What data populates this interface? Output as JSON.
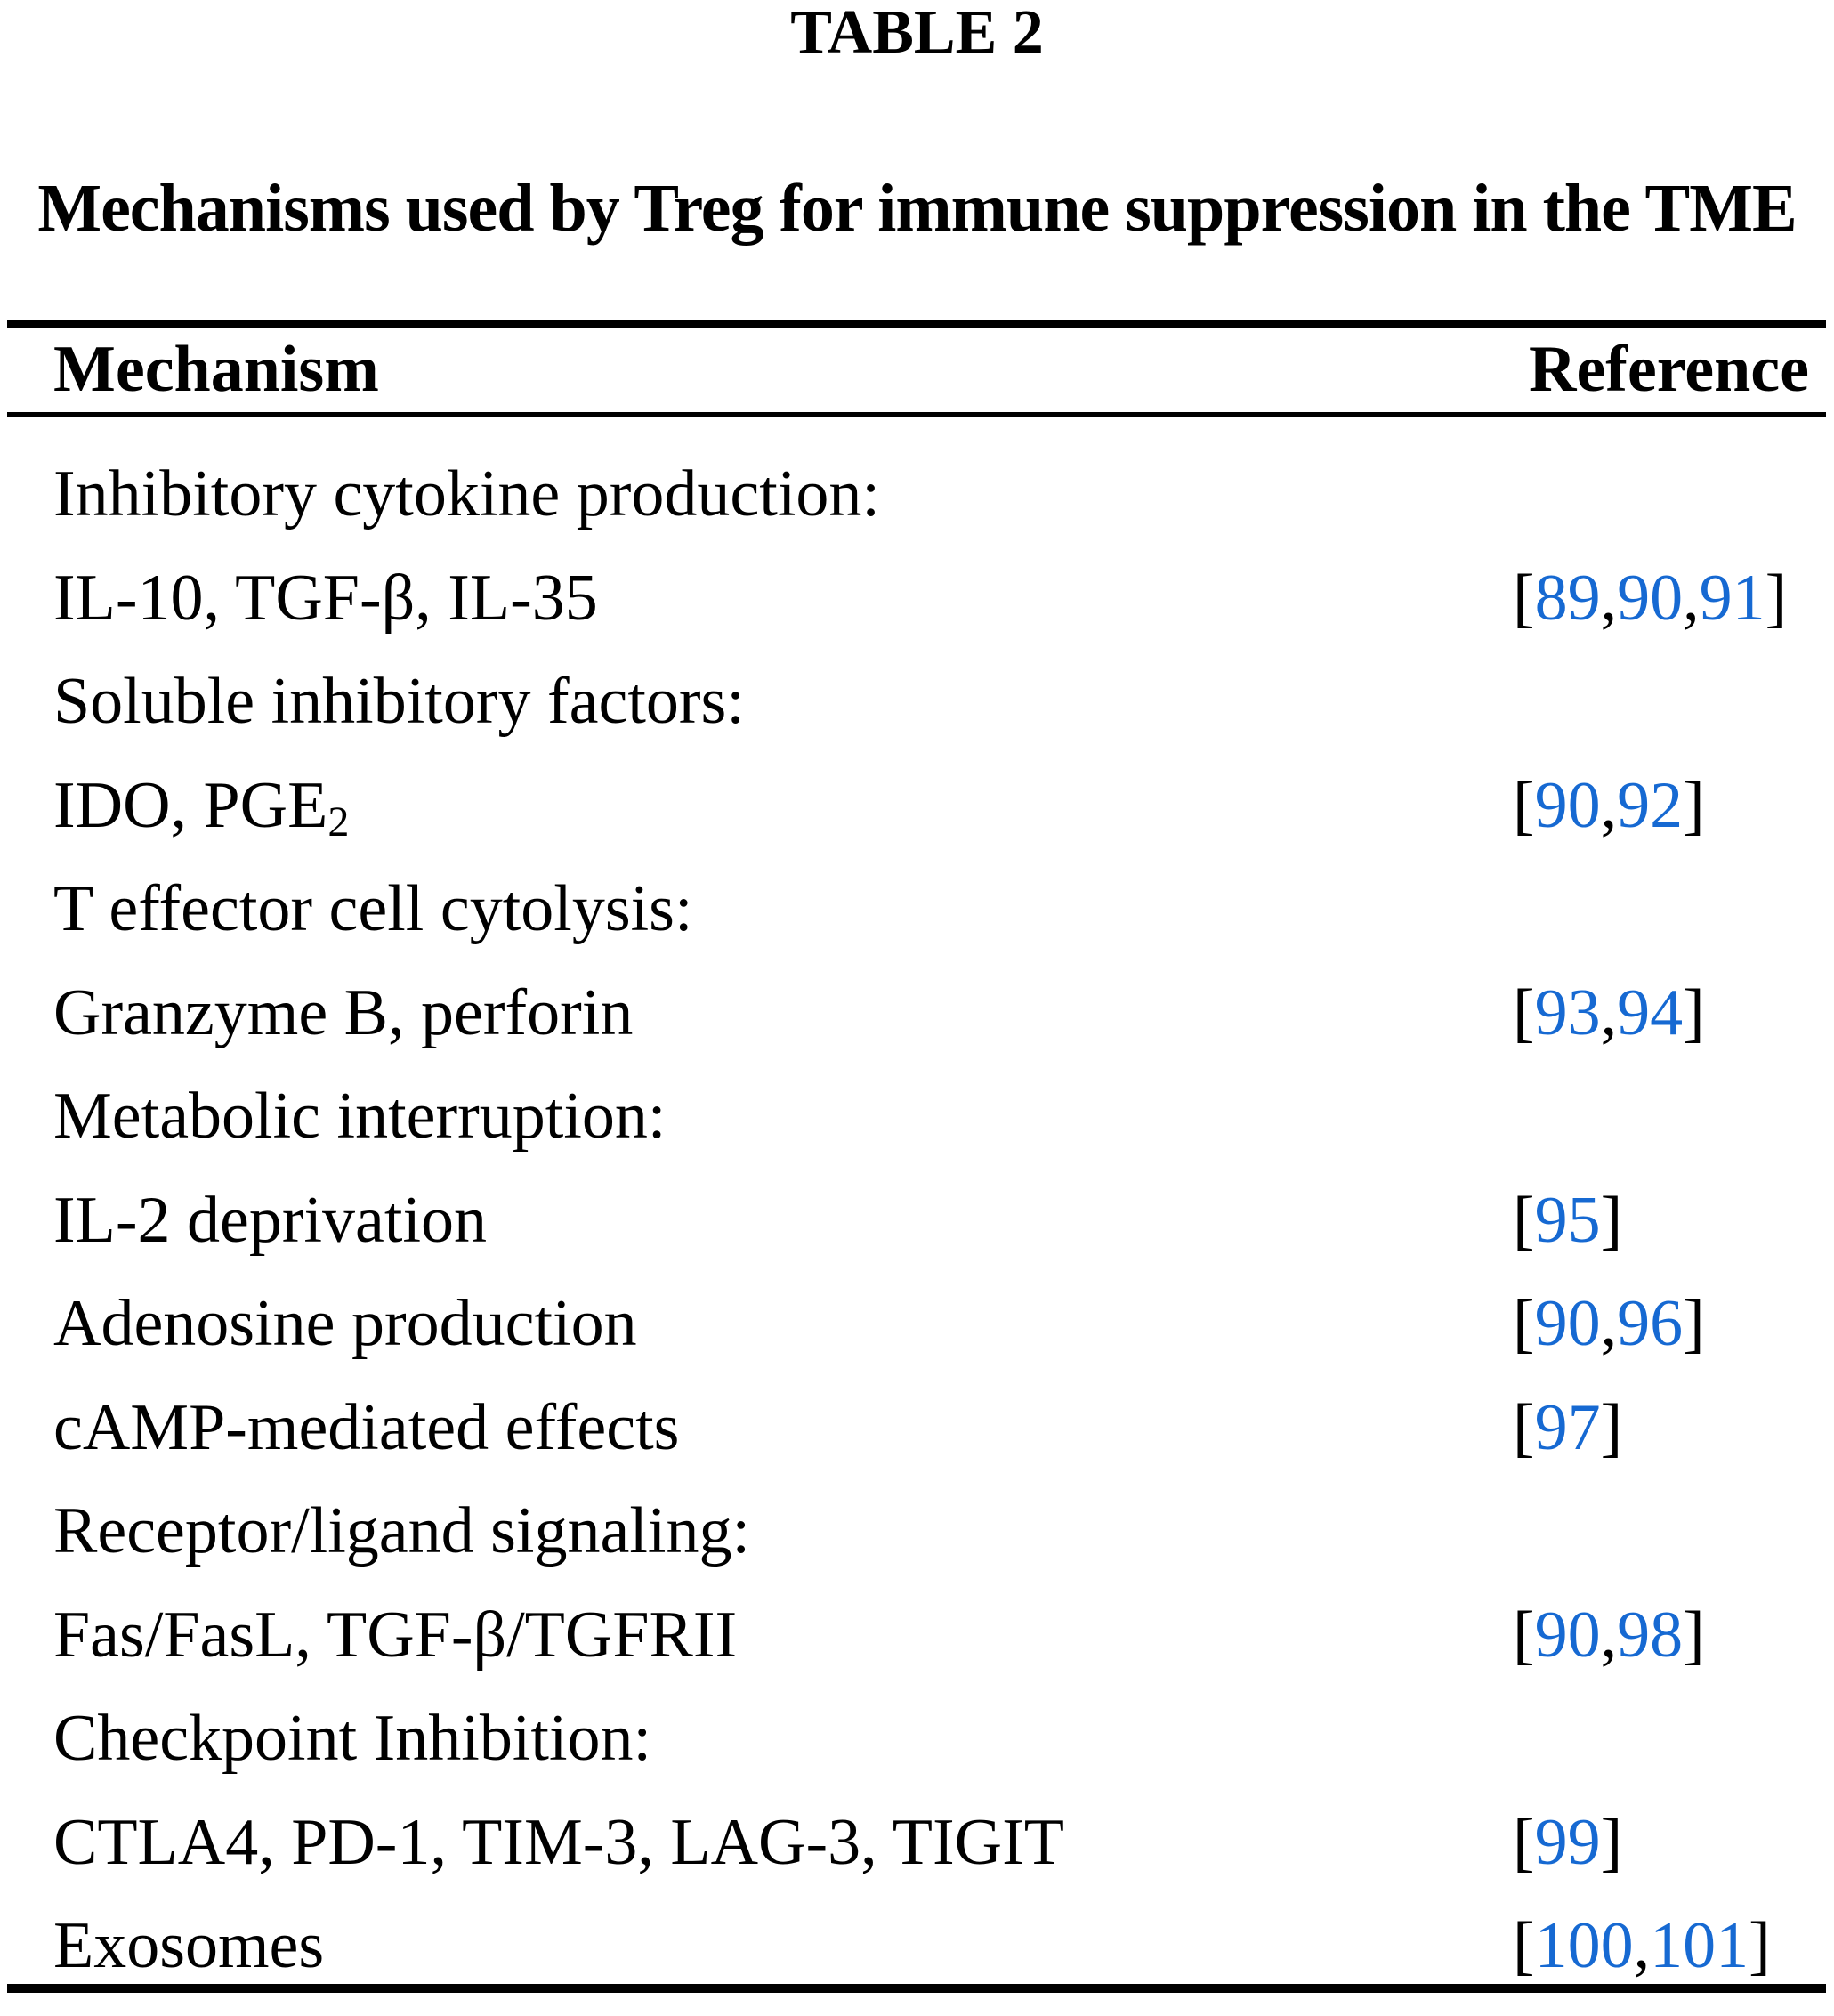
{
  "table": {
    "label": "TABLE 2",
    "title": "Mechanisms used by Treg for immune suppression in the TME",
    "columns": {
      "mechanism": "Mechanism",
      "reference": "Reference"
    },
    "rows": [
      {
        "parts": [
          {
            "text": "Inhibitory cytokine production:"
          }
        ],
        "refs": []
      },
      {
        "parts": [
          {
            "text": "IL-10, TGF-β, IL-35"
          }
        ],
        "refs": [
          "89",
          "90",
          "91"
        ]
      },
      {
        "parts": [
          {
            "text": "Soluble inhibitory factors:"
          }
        ],
        "refs": []
      },
      {
        "parts": [
          {
            "text": "IDO, PGE"
          },
          {
            "text": "2",
            "sub": true
          }
        ],
        "refs": [
          "90",
          "92"
        ]
      },
      {
        "parts": [
          {
            "text": "T effector cell cytolysis:"
          }
        ],
        "refs": []
      },
      {
        "parts": [
          {
            "text": "Granzyme B, perforin"
          }
        ],
        "refs": [
          "93",
          "94"
        ]
      },
      {
        "parts": [
          {
            "text": "Metabolic interruption:"
          }
        ],
        "refs": []
      },
      {
        "parts": [
          {
            "text": "IL-2 deprivation"
          }
        ],
        "refs": [
          "95"
        ]
      },
      {
        "parts": [
          {
            "text": "Adenosine production"
          }
        ],
        "refs": [
          "90",
          "96"
        ]
      },
      {
        "parts": [
          {
            "text": "cAMP-mediated effects"
          }
        ],
        "refs": [
          "97"
        ]
      },
      {
        "parts": [
          {
            "text": "Receptor/ligand signaling:"
          }
        ],
        "refs": []
      },
      {
        "parts": [
          {
            "text": "Fas/FasL, TGF-β/TGFRII"
          }
        ],
        "refs": [
          "90",
          "98"
        ]
      },
      {
        "parts": [
          {
            "text": "Checkpoint Inhibition:"
          }
        ],
        "refs": []
      },
      {
        "parts": [
          {
            "text": "CTLA4, PD-1, TIM-3, LAG-3, TIGIT"
          }
        ],
        "refs": [
          "99"
        ]
      },
      {
        "parts": [
          {
            "text": "Exosomes"
          }
        ],
        "refs": [
          "100",
          "101"
        ]
      }
    ],
    "punctuation": {
      "open_bracket": "[",
      "close_bracket": "]",
      "separator": ","
    },
    "colors": {
      "link_blue": "#1669d2",
      "text": "#000000",
      "background": "#ffffff"
    }
  }
}
